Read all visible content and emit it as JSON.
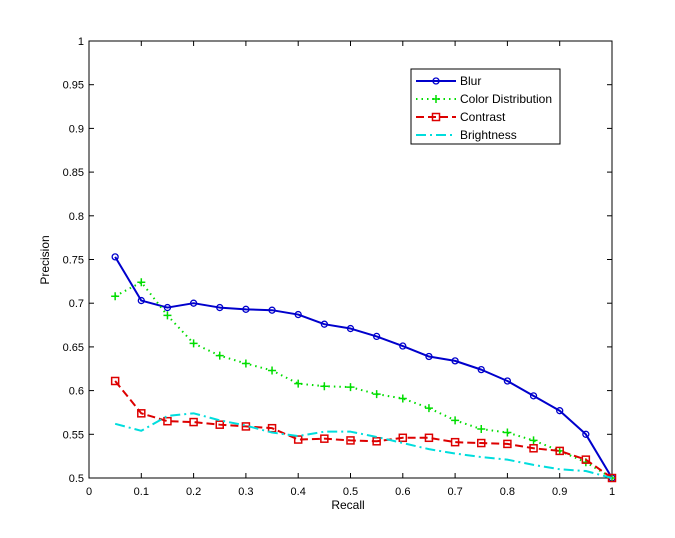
{
  "chart_data": {
    "type": "line",
    "title": "",
    "xlabel": "Recall",
    "ylabel": "Precision",
    "xlim": [
      0,
      1
    ],
    "ylim": [
      0.5,
      1
    ],
    "grid": false,
    "legend_position": "top-right",
    "xticks": [
      "0",
      "0.1",
      "0.2",
      "0.3",
      "0.4",
      "0.5",
      "0.6",
      "0.7",
      "0.8",
      "0.9",
      "1"
    ],
    "yticks": [
      "0.5",
      "0.55",
      "0.6",
      "0.65",
      "0.7",
      "0.75",
      "0.8",
      "0.85",
      "0.9",
      "0.95",
      "1"
    ],
    "x": [
      0.05,
      0.1,
      0.15,
      0.2,
      0.25,
      0.3,
      0.35,
      0.4,
      0.45,
      0.5,
      0.55,
      0.6,
      0.65,
      0.7,
      0.75,
      0.8,
      0.85,
      0.9,
      0.95,
      1.0
    ],
    "series": [
      {
        "name": "Blur",
        "color": "#0000cc",
        "line_style": "solid",
        "marker": "circle",
        "values": [
          0.753,
          0.703,
          0.695,
          0.7,
          0.695,
          0.693,
          0.692,
          0.687,
          0.676,
          0.671,
          0.662,
          0.651,
          0.639,
          0.634,
          0.624,
          0.611,
          0.594,
          0.577,
          0.55,
          0.5
        ]
      },
      {
        "name": "Color Distribution",
        "color": "#00dd00",
        "line_style": "dotted",
        "marker": "plus",
        "values": [
          0.708,
          0.724,
          0.686,
          0.654,
          0.64,
          0.631,
          0.623,
          0.608,
          0.605,
          0.604,
          0.596,
          0.591,
          0.58,
          0.566,
          0.556,
          0.552,
          0.543,
          0.531,
          0.518,
          0.5
        ]
      },
      {
        "name": "Contrast",
        "color": "#dd0000",
        "line_style": "dashed",
        "marker": "square",
        "values": [
          0.611,
          0.574,
          0.565,
          0.564,
          0.561,
          0.559,
          0.557,
          0.544,
          0.545,
          0.543,
          0.542,
          0.546,
          0.546,
          0.541,
          0.54,
          0.539,
          0.534,
          0.531,
          0.521,
          0.5
        ]
      },
      {
        "name": "Brightness",
        "color": "#00dddd",
        "line_style": "dashdot",
        "marker": "none",
        "values": [
          0.562,
          0.554,
          0.571,
          0.574,
          0.566,
          0.56,
          0.552,
          0.548,
          0.553,
          0.553,
          0.547,
          0.54,
          0.533,
          0.528,
          0.524,
          0.521,
          0.515,
          0.51,
          0.508,
          0.5
        ]
      }
    ]
  }
}
